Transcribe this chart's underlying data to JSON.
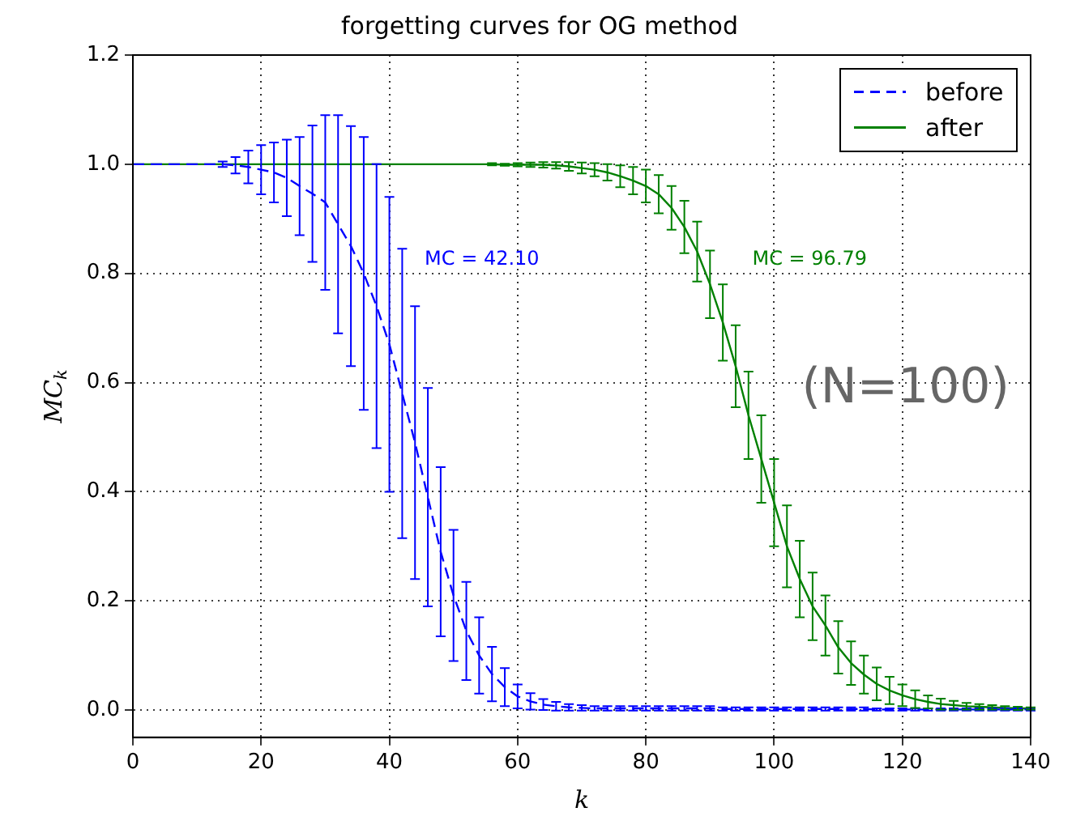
{
  "chart_data": {
    "type": "line",
    "title": "forgetting curves for OG method",
    "xlabel": "k",
    "ylabel": "MC$_{k}$",
    "x": [
      0,
      2,
      4,
      6,
      8,
      10,
      12,
      14,
      16,
      18,
      20,
      22,
      24,
      26,
      28,
      30,
      32,
      34,
      36,
      38,
      40,
      42,
      44,
      46,
      48,
      50,
      52,
      54,
      56,
      58,
      60,
      62,
      64,
      66,
      68,
      70,
      72,
      74,
      76,
      78,
      80,
      82,
      84,
      86,
      88,
      90,
      92,
      94,
      96,
      98,
      100,
      102,
      104,
      106,
      108,
      110,
      112,
      114,
      116,
      118,
      120,
      122,
      124,
      126,
      128,
      130,
      132,
      134,
      136,
      138,
      140
    ],
    "series": [
      {
        "name": "before",
        "color": "#0000ff",
        "line_style": "dashed",
        "values": [
          1,
          1,
          1,
          1,
          1,
          1,
          1,
          1,
          0.998,
          0.995,
          0.99,
          0.985,
          0.975,
          0.96,
          0.946,
          0.93,
          0.89,
          0.85,
          0.8,
          0.74,
          0.67,
          0.58,
          0.49,
          0.39,
          0.29,
          0.21,
          0.145,
          0.1,
          0.066,
          0.042,
          0.025,
          0.016,
          0.01,
          0.007,
          0.005,
          0.004,
          0.003,
          0.003,
          0.003,
          0.003,
          0.003,
          0.003,
          0.003,
          0.003,
          0.003,
          0.003,
          0.002,
          0.002,
          0.002,
          0.002,
          0.002,
          0.002,
          0.002,
          0.002,
          0.002,
          0.002,
          0.002,
          0.002,
          0.001,
          0.001,
          0.001,
          0.001,
          0.001,
          0.001,
          0.001,
          0.001,
          0.001,
          0.001,
          0.001,
          0.001,
          0.001
        ],
        "errors": [
          null,
          null,
          null,
          null,
          null,
          null,
          null,
          0.005,
          0.015,
          0.03,
          0.045,
          0.055,
          0.07,
          0.09,
          0.125,
          0.16,
          0.2,
          0.22,
          0.25,
          0.26,
          0.27,
          0.265,
          0.25,
          0.2,
          0.155,
          0.12,
          0.09,
          0.07,
          0.05,
          0.035,
          0.022,
          0.015,
          0.01,
          0.008,
          0.006,
          0.005,
          0.004,
          0.004,
          0.004,
          0.004,
          0.004,
          0.004,
          0.004,
          0.004,
          0.004,
          0.004,
          0.003,
          0.003,
          0.003,
          0.003,
          0.003,
          0.003,
          0.003,
          0.003,
          0.003,
          0.003,
          0.003,
          0.003,
          0.002,
          0.002,
          0.002,
          0.002,
          0.002,
          0.002,
          0.002,
          0.002,
          0.002,
          0.002,
          0.002,
          0.002,
          0.002
        ]
      },
      {
        "name": "after",
        "color": "#008000",
        "line_style": "solid",
        "values": [
          1,
          1,
          1,
          1,
          1,
          1,
          1,
          1,
          1,
          1,
          1,
          1,
          1,
          1,
          1,
          1,
          1,
          1,
          1,
          1,
          1,
          1,
          1,
          1,
          1,
          1,
          1,
          1,
          1,
          0.999,
          0.999,
          0.999,
          0.999,
          0.998,
          0.996,
          0.993,
          0.99,
          0.985,
          0.978,
          0.97,
          0.96,
          0.945,
          0.92,
          0.885,
          0.84,
          0.78,
          0.71,
          0.63,
          0.54,
          0.46,
          0.38,
          0.3,
          0.24,
          0.19,
          0.155,
          0.115,
          0.086,
          0.065,
          0.048,
          0.036,
          0.027,
          0.02,
          0.015,
          0.011,
          0.009,
          0.007,
          0.006,
          0.005,
          0.004,
          0.003,
          0.003
        ],
        "errors": [
          null,
          null,
          null,
          null,
          null,
          null,
          null,
          null,
          null,
          null,
          null,
          null,
          null,
          null,
          null,
          null,
          null,
          null,
          null,
          null,
          null,
          null,
          null,
          null,
          null,
          null,
          null,
          null,
          0.002,
          0.002,
          0.003,
          0.004,
          0.005,
          0.006,
          0.008,
          0.01,
          0.012,
          0.015,
          0.02,
          0.025,
          0.03,
          0.035,
          0.04,
          0.048,
          0.055,
          0.062,
          0.07,
          0.075,
          0.08,
          0.08,
          0.08,
          0.075,
          0.07,
          0.062,
          0.055,
          0.048,
          0.04,
          0.035,
          0.03,
          0.025,
          0.02,
          0.016,
          0.012,
          0.01,
          0.008,
          0.006,
          0.005,
          0.004,
          0.003,
          0.003,
          0.002
        ]
      }
    ],
    "xlim": [
      0,
      140
    ],
    "xticks": [
      0,
      20,
      40,
      60,
      80,
      100,
      120,
      140
    ],
    "ylim": [
      -0.05,
      1.2
    ],
    "yticks": [
      {
        "value": 0,
        "label": "0.0"
      },
      {
        "value": 0.2,
        "label": "0.2"
      },
      {
        "value": 0.4,
        "label": "0.4"
      },
      {
        "value": 0.6,
        "label": "0.6"
      },
      {
        "value": 0.8,
        "label": "0.8"
      },
      {
        "value": 1,
        "label": "1.0"
      },
      {
        "value": 1.2,
        "label": "1.2"
      }
    ],
    "annotations": [
      "MC = 42.10",
      "MC = 96.79",
      "(N=100)"
    ],
    "grid": true,
    "legend": "top right",
    "marker": "none"
  }
}
